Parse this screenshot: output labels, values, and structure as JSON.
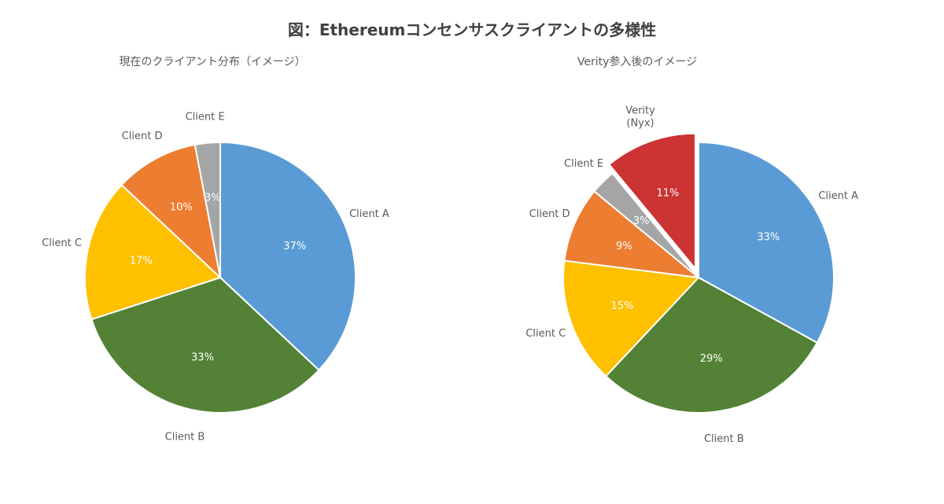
{
  "chart_data": [
    {
      "type": "pie",
      "title": "現在のクライアント分布（イメージ）",
      "categories": [
        "Client A",
        "Client B",
        "Client C",
        "Client D",
        "Client E"
      ],
      "values": [
        37,
        33,
        17,
        10,
        3
      ],
      "value_labels": [
        "37%",
        "33%",
        "17%",
        "10%",
        "3%"
      ],
      "colors": [
        "#5B9BD5",
        "#538135",
        "#FFC000",
        "#ED7D31",
        "#A5A5A5"
      ],
      "exploded": []
    },
    {
      "type": "pie",
      "title": "Verity参入後のイメージ",
      "categories": [
        "Client A",
        "Client B",
        "Client C",
        "Client D",
        "Client E",
        "Verity\n(Nyx)"
      ],
      "values": [
        33,
        29,
        15,
        9,
        3,
        11
      ],
      "value_labels": [
        "33%",
        "29%",
        "15%",
        "9%",
        "3%",
        "11%"
      ],
      "colors": [
        "#5B9BD5",
        "#538135",
        "#FFC000",
        "#ED7D31",
        "#A5A5A5",
        "#CC3333"
      ],
      "exploded": [
        "Verity\n(Nyx)"
      ]
    }
  ],
  "figure_title": "図：Ethereumコンセンサスクライアントの多様性"
}
